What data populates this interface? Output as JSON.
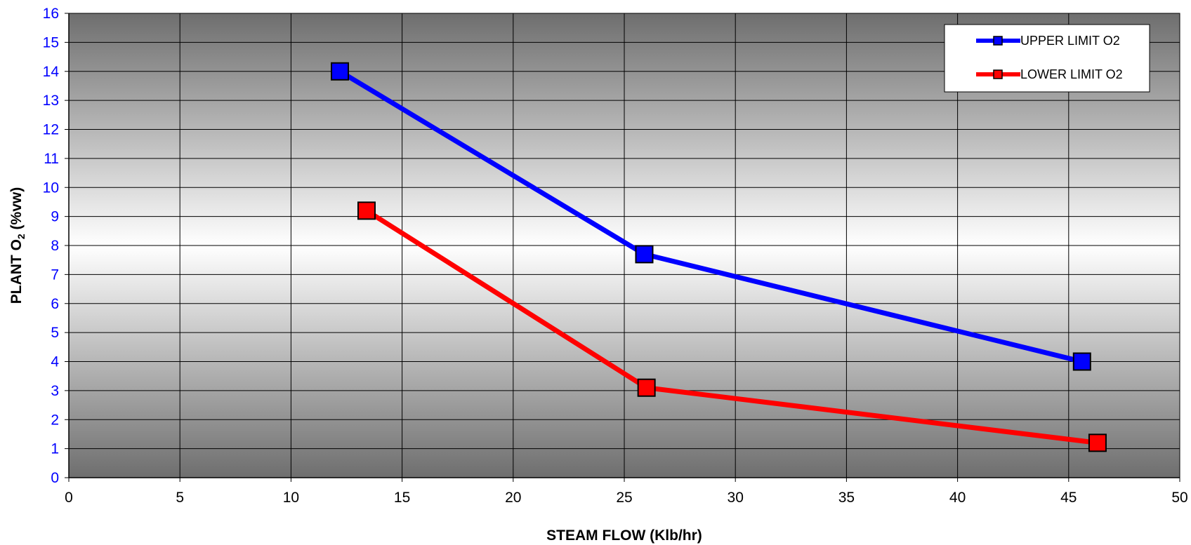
{
  "chart_data": {
    "type": "line",
    "title": "",
    "xlabel": "STEAM FLOW (Klb/hr)",
    "ylabel": "PLANT O",
    "ylabel_sub": "2",
    "ylabel_suffix": " (%vw)",
    "xlim": [
      0,
      50
    ],
    "ylim": [
      0,
      16
    ],
    "x_ticks": [
      "0",
      "5",
      "10",
      "15",
      "20",
      "25",
      "30",
      "35",
      "40",
      "45",
      "50"
    ],
    "y_ticks": [
      "0",
      "1",
      "2",
      "3",
      "4",
      "5",
      "6",
      "7",
      "8",
      "9",
      "10",
      "11",
      "12",
      "13",
      "14",
      "15",
      "16"
    ],
    "grid": true,
    "legend_position": "top-right",
    "series": [
      {
        "name": "UPPER LIMIT O2",
        "color": "#0000ff",
        "x": [
          12.2,
          25.9,
          45.6
        ],
        "y": [
          14.0,
          7.7,
          4.0
        ]
      },
      {
        "name": "LOWER LIMIT O2",
        "color": "#ff0000",
        "x": [
          13.4,
          26.0,
          46.3
        ],
        "y": [
          9.2,
          3.1,
          1.2
        ]
      }
    ]
  }
}
